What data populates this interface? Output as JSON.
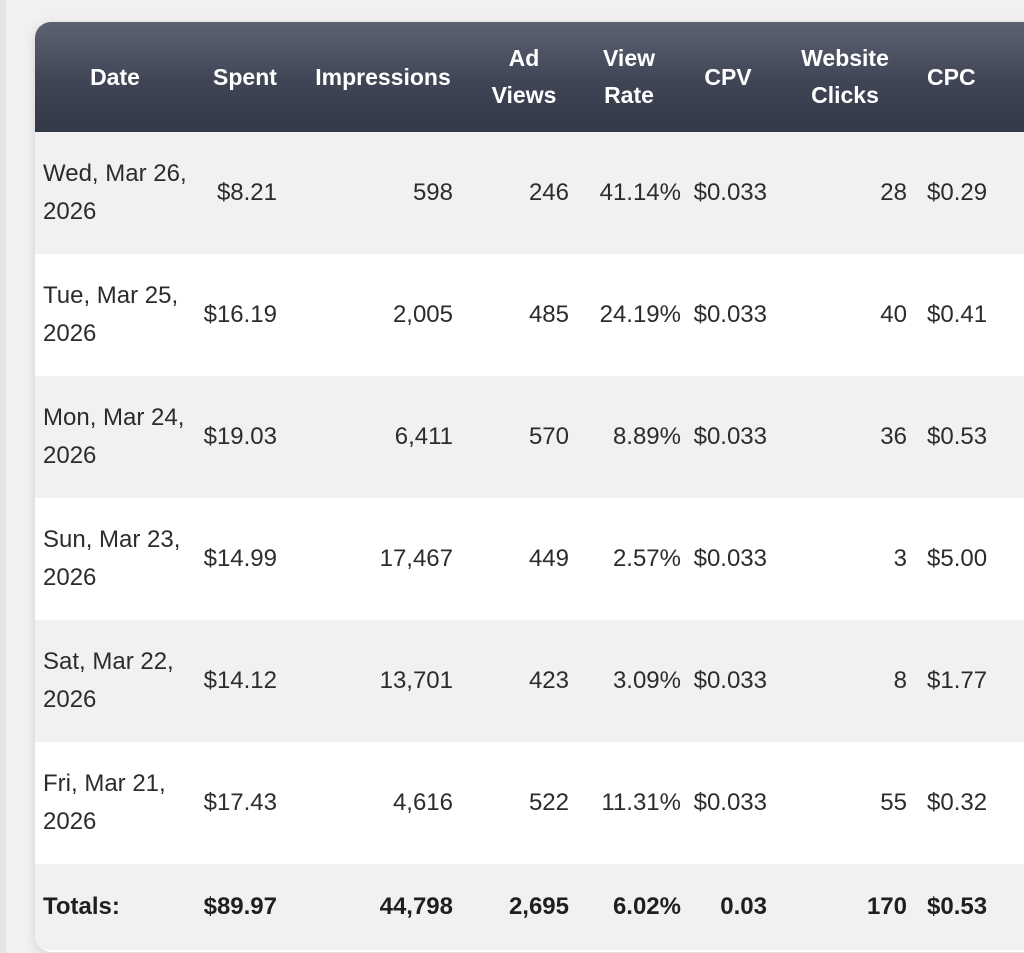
{
  "table": {
    "headers": {
      "date": "Date",
      "spent": "Spent",
      "impressions": "Impressions",
      "ad_views": "Ad\nViews",
      "view_rate": "View\nRate",
      "cpv": "CPV",
      "website_clicks": "Website\nClicks",
      "cpc": "CPC"
    },
    "rows": [
      {
        "date": "Wed, Mar 26,\n2026",
        "spent": "$8.21",
        "impressions": "598",
        "ad_views": "246",
        "view_rate": "41.14%",
        "cpv": "$0.033",
        "website_clicks": "28",
        "cpc": "$0.29"
      },
      {
        "date": "Tue, Mar 25,\n2026",
        "spent": "$16.19",
        "impressions": "2,005",
        "ad_views": "485",
        "view_rate": "24.19%",
        "cpv": "$0.033",
        "website_clicks": "40",
        "cpc": "$0.41"
      },
      {
        "date": "Mon, Mar 24,\n2026",
        "spent": "$19.03",
        "impressions": "6,411",
        "ad_views": "570",
        "view_rate": "8.89%",
        "cpv": "$0.033",
        "website_clicks": "36",
        "cpc": "$0.53"
      },
      {
        "date": "Sun, Mar 23,\n2026",
        "spent": "$14.99",
        "impressions": "17,467",
        "ad_views": "449",
        "view_rate": "2.57%",
        "cpv": "$0.033",
        "website_clicks": "3",
        "cpc": "$5.00"
      },
      {
        "date": "Sat, Mar 22,\n2026",
        "spent": "$14.12",
        "impressions": "13,701",
        "ad_views": "423",
        "view_rate": "3.09%",
        "cpv": "$0.033",
        "website_clicks": "8",
        "cpc": "$1.77"
      },
      {
        "date": "Fri, Mar 21,\n2026",
        "spent": "$17.43",
        "impressions": "4,616",
        "ad_views": "522",
        "view_rate": "11.31%",
        "cpv": "$0.033",
        "website_clicks": "55",
        "cpc": "$0.32"
      }
    ],
    "totals": {
      "label": "Totals:",
      "spent": "$89.97",
      "impressions": "44,798",
      "ad_views": "2,695",
      "view_rate": "6.02%",
      "cpv": "0.03",
      "website_clicks": "170",
      "cpc": "$0.53"
    }
  }
}
